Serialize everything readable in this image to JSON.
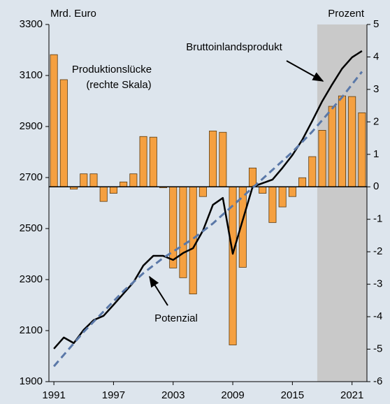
{
  "chart_data": {
    "type": "combo",
    "y_label": "Mrd. Euro",
    "y2_label": "Prozent",
    "x": [
      1991,
      1992,
      1993,
      1994,
      1995,
      1996,
      1997,
      1998,
      1999,
      2000,
      2001,
      2002,
      2003,
      2004,
      2005,
      2006,
      2007,
      2008,
      2009,
      2010,
      2011,
      2012,
      2013,
      2014,
      2015,
      2016,
      2017,
      2018,
      2019,
      2020,
      2021,
      2022
    ],
    "xlim": [
      1990.5,
      2022.5
    ],
    "xticks": [
      1991,
      1997,
      2003,
      2009,
      2015,
      2021
    ],
    "ylim": [
      1900,
      3300
    ],
    "yticks": [
      1900,
      2100,
      2300,
      2500,
      2700,
      2900,
      3100,
      3300
    ],
    "y2lim": [
      -6,
      5
    ],
    "y2ticks": [
      -6,
      -5,
      -4,
      -3,
      -2,
      -1,
      0,
      1,
      2,
      3,
      4,
      5
    ],
    "shaded_region": [
      2017.5,
      2022.5
    ],
    "series": [
      {
        "name": "Bruttoinlandsprodukt",
        "type": "line",
        "color": "#000000",
        "values": [
          2029,
          2073,
          2051,
          2103,
          2141,
          2158,
          2201,
          2245,
          2289,
          2355,
          2393,
          2393,
          2377,
          2404,
          2423,
          2492,
          2593,
          2620,
          2401,
          2533,
          2664,
          2678,
          2692,
          2738,
          2788,
          2848,
          2922,
          2999,
          3065,
          3127,
          3171,
          3196
        ]
      },
      {
        "name": "Potenzial",
        "type": "dashed-line",
        "color": "#5a78a8",
        "values": [
          1960,
          2005,
          2050,
          2095,
          2135,
          2175,
          2215,
          2255,
          2290,
          2325,
          2355,
          2385,
          2410,
          2435,
          2460,
          2490,
          2520,
          2555,
          2590,
          2625,
          2660,
          2695,
          2730,
          2765,
          2800,
          2840,
          2880,
          2925,
          2970,
          3015,
          3065,
          3115
        ]
      },
      {
        "name": "Produktionslücke",
        "note": "(rechte Skala)",
        "type": "bar",
        "axis": "y2",
        "color": "#f5a040",
        "values": [
          4.07,
          3.3,
          -0.07,
          0.4,
          0.4,
          -0.45,
          -0.2,
          0.15,
          0.4,
          1.55,
          1.53,
          -0.03,
          -2.5,
          -2.8,
          -3.3,
          -0.3,
          1.72,
          1.68,
          -4.87,
          -2.48,
          0.58,
          -0.2,
          -1.1,
          -0.62,
          -0.3,
          0.28,
          0.93,
          1.74,
          2.48,
          2.8,
          2.78,
          2.28
        ]
      }
    ]
  }
}
